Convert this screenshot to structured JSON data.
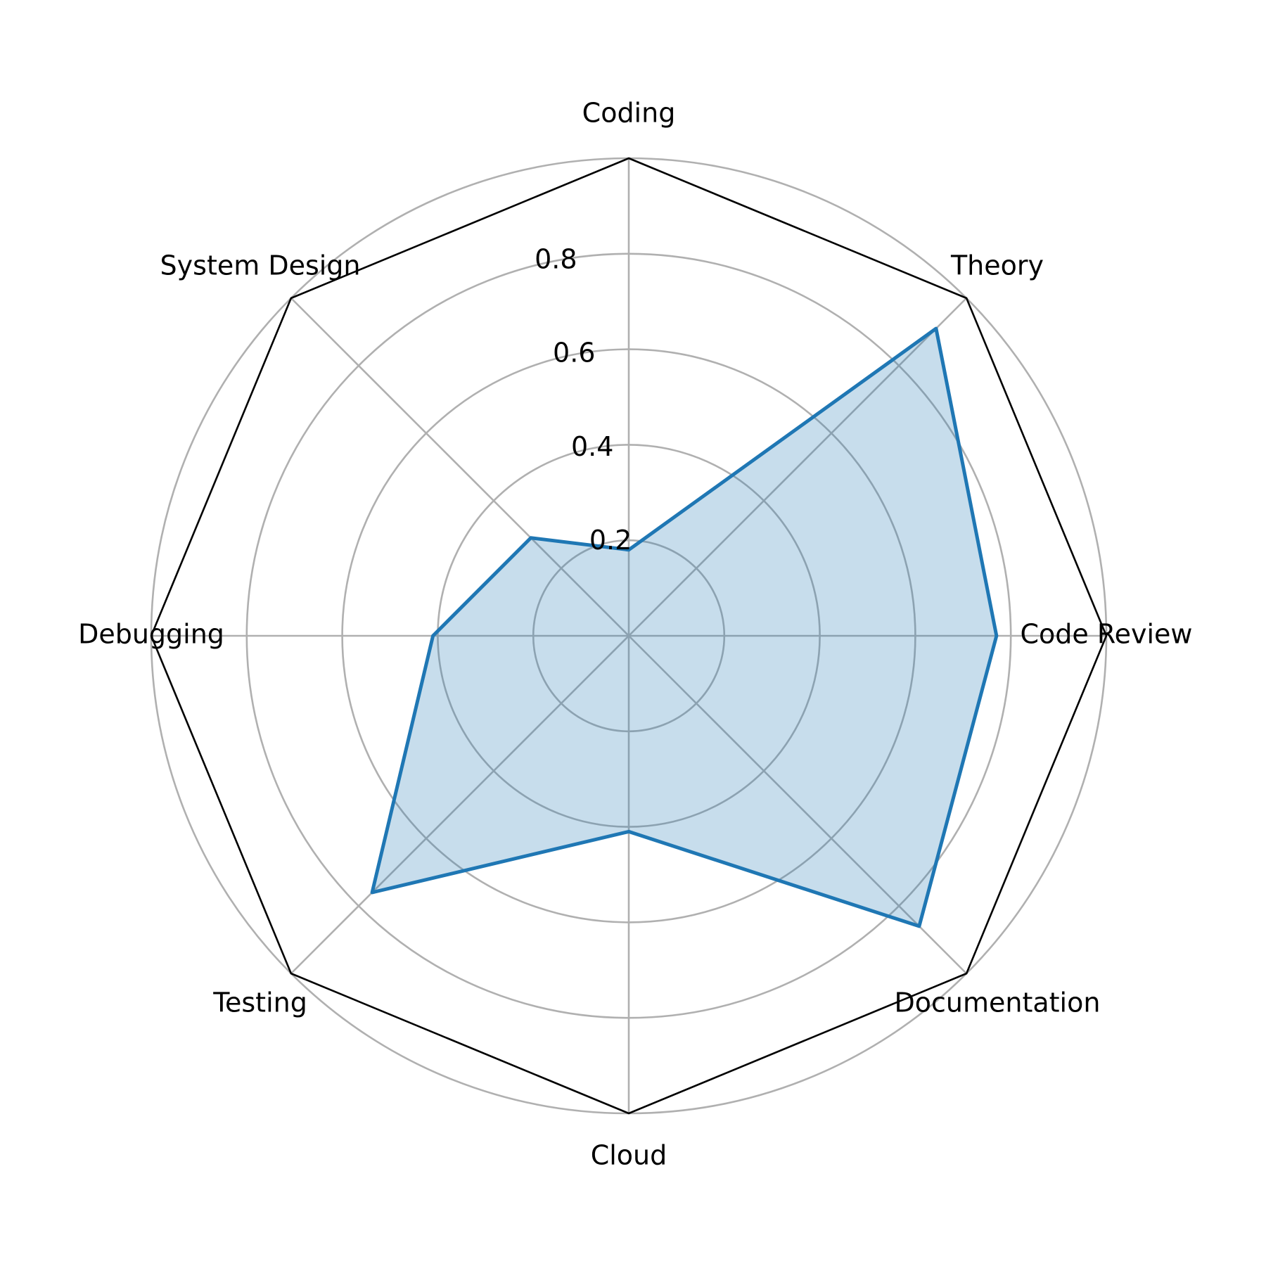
{
  "chart_data": {
    "type": "radar",
    "categories": [
      "Coding",
      "Theory",
      "Code Review",
      "Documentation",
      "Cloud",
      "Testing",
      "Debugging",
      "System Design"
    ],
    "series": [
      {
        "values": [
          0.18,
          0.91,
          0.77,
          0.86,
          0.41,
          0.76,
          0.41,
          0.29
        ]
      }
    ],
    "rlim": [
      0,
      1.0
    ],
    "rticks": [
      0.2,
      0.4,
      0.6,
      0.8
    ],
    "rtick_labels": [
      "0.2",
      "0.4",
      "0.6",
      "0.8"
    ],
    "grid": true,
    "frame_shape": "octagon",
    "colors": {
      "line": "#1f77b4",
      "fill": "#1f77b4",
      "grid": "#b0b0b0",
      "frame": "#000000"
    },
    "fill_opacity": 0.25
  }
}
